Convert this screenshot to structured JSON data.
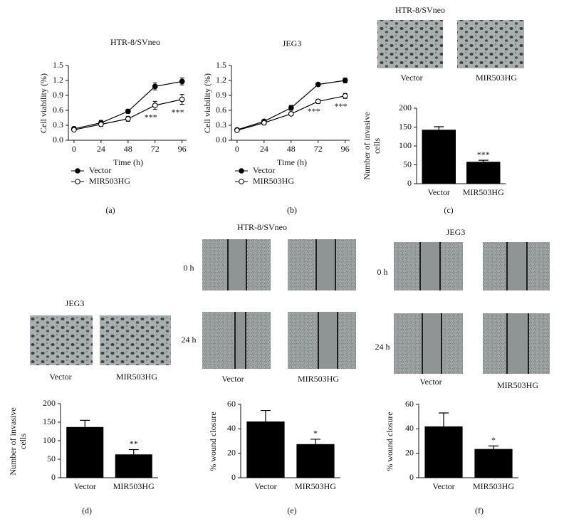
{
  "chart_data": [
    {
      "type": "line",
      "title": "HTR-8/SVneo",
      "panel_label": "(a)",
      "xlabel": "Time (h)",
      "ylabel": "Cell viability (%)",
      "x": [
        0,
        24,
        48,
        72,
        96
      ],
      "xlim": [
        -5,
        100
      ],
      "xticks": [
        0,
        24,
        48,
        72,
        96
      ],
      "ylim": [
        0,
        1.5
      ],
      "yticks": [
        {
          "value": 0,
          "label": "0.0"
        },
        0.3,
        0.6,
        0.9,
        1.2,
        1.5
      ],
      "series": [
        {
          "name": "Vector",
          "color": "#000000",
          "marker": "filled",
          "values": [
            0.23,
            0.35,
            0.58,
            1.08,
            1.18
          ],
          "errors": [
            0.04,
            0.05,
            0.04,
            0.07,
            0.07
          ]
        },
        {
          "name": "MIR503HG",
          "color": "#000000",
          "marker": "open",
          "values": [
            0.21,
            0.32,
            0.43,
            0.7,
            0.82
          ],
          "errors": [
            0.03,
            0.04,
            0.05,
            0.08,
            0.1
          ],
          "annotations": [
            null,
            null,
            null,
            "***",
            "***"
          ]
        }
      ]
    },
    {
      "type": "line",
      "title": "JEG3",
      "panel_label": "(b)",
      "xlabel": "Time (h)",
      "ylabel": "Cell viability (%)",
      "x": [
        0,
        24,
        48,
        72,
        96
      ],
      "xlim": [
        -5,
        100
      ],
      "xticks": [
        0,
        24,
        48,
        72,
        96
      ],
      "ylim": [
        0,
        1.5
      ],
      "yticks": [
        {
          "value": 0,
          "label": "0.0"
        },
        0.3,
        0.6,
        0.9,
        1.2,
        1.5
      ],
      "series": [
        {
          "name": "Vector",
          "color": "#000000",
          "marker": "filled",
          "values": [
            0.21,
            0.38,
            0.65,
            1.12,
            1.2
          ],
          "errors": [
            0.02,
            0.03,
            0.05,
            0.03,
            0.05
          ]
        },
        {
          "name": "MIR503HG",
          "color": "#000000",
          "marker": "open",
          "values": [
            0.2,
            0.35,
            0.53,
            0.78,
            0.89
          ],
          "errors": [
            0.02,
            0.04,
            0.03,
            0.04,
            0.05
          ],
          "annotations": [
            null,
            null,
            null,
            "***",
            "***"
          ]
        }
      ]
    },
    {
      "type": "bar",
      "image_title": "HTR-8/SVneo",
      "image_captions": [
        "Vector",
        "MIR503HG"
      ],
      "panel_label": "(c)",
      "ylabel": [
        "Number of invasive",
        "cells"
      ],
      "categories": [
        "Vector",
        "MIR503HG"
      ],
      "color": "#000000",
      "values": [
        143,
        58
      ],
      "errors": [
        8,
        4
      ],
      "annotations": [
        null,
        "***"
      ],
      "ylim": [
        0,
        200
      ],
      "yticks": [
        0,
        50,
        100,
        150,
        200
      ]
    },
    {
      "type": "bar",
      "image_title": "JEG3",
      "image_captions": [
        "Vector",
        "MIR503HG"
      ],
      "panel_label": "(d)",
      "ylabel": [
        "Number of invasive",
        "cells"
      ],
      "categories": [
        "Vector",
        "MIR503HG"
      ],
      "color": "#000000",
      "values": [
        137,
        63
      ],
      "errors": [
        18,
        13
      ],
      "annotations": [
        null,
        "**"
      ],
      "ylim": [
        0,
        200
      ],
      "yticks": [
        0,
        50,
        100,
        150,
        200
      ]
    },
    {
      "type": "bar",
      "image_title": "HTR-8/SVneo",
      "image_captions": [
        "Vector",
        "MIR503HG"
      ],
      "row_labels": [
        "0 h",
        "24 h"
      ],
      "panel_label": "(e)",
      "ylabel": [
        "% wound closure"
      ],
      "categories": [
        "Vector",
        "MIR503HG"
      ],
      "color": "#000000",
      "values": [
        46,
        27.5
      ],
      "errors": [
        9,
        4
      ],
      "annotations": [
        null,
        "*"
      ],
      "ylim": [
        0,
        60
      ],
      "yticks": [
        0,
        20,
        40,
        60
      ]
    },
    {
      "type": "bar",
      "image_title": "JEG3",
      "image_captions": [
        "Vector",
        "MIR503HG"
      ],
      "row_labels": [
        "0 h",
        "24 h"
      ],
      "panel_label": "(f)",
      "ylabel": [
        "% wound closure"
      ],
      "categories": [
        "Vector",
        "MIR503HG"
      ],
      "color": "#000000",
      "values": [
        42,
        23.5
      ],
      "errors": [
        11,
        2.5
      ],
      "annotations": [
        null,
        "*"
      ],
      "ylim": [
        0,
        60
      ],
      "yticks": [
        0,
        20,
        40,
        60
      ]
    }
  ]
}
